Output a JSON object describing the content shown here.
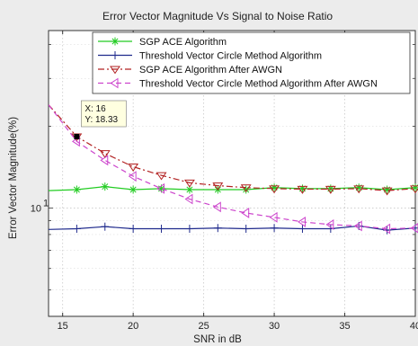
{
  "chart_data": {
    "type": "line",
    "title": "Error Vector Magnitude Vs Signal to Noise Ratio",
    "xlabel": "SNR in dB",
    "ylabel": "Error Vector Magnitude(%)",
    "xlim": [
      14,
      40
    ],
    "ylim": [
      4,
      45
    ],
    "yscale": "log",
    "grid": true,
    "legend_position": "top-right",
    "x_ticks": [
      15,
      20,
      25,
      30,
      35,
      40
    ],
    "y_ticks": [
      {
        "value": 10,
        "label": "10",
        "sup": "1"
      }
    ],
    "series": [
      {
        "name": "SGP ACE Algorithm",
        "color": "#22cc22",
        "marker": "asterisk",
        "dash": "solid",
        "x": [
          14,
          16,
          18,
          20,
          22,
          24,
          26,
          28,
          30,
          32,
          34,
          36,
          38,
          40
        ],
        "y": [
          11.6,
          11.7,
          12.0,
          11.7,
          11.8,
          11.7,
          11.7,
          11.7,
          11.9,
          11.8,
          11.8,
          11.9,
          11.7,
          11.9
        ]
      },
      {
        "name": "Threshold Vector Circle Method Algorithm",
        "color": "#1f2a8c",
        "marker": "plus",
        "dash": "solid",
        "x": [
          14,
          16,
          18,
          20,
          22,
          24,
          26,
          28,
          30,
          32,
          34,
          36,
          38,
          40
        ],
        "y": [
          8.35,
          8.4,
          8.55,
          8.4,
          8.4,
          8.4,
          8.45,
          8.4,
          8.45,
          8.4,
          8.4,
          8.6,
          8.3,
          8.45
        ]
      },
      {
        "name": "SGP ACE Algorithm After AWGN",
        "color": "#b22222",
        "marker": "triangle-down",
        "dash": "dashdot",
        "x": [
          14,
          16,
          18,
          20,
          22,
          24,
          26,
          28,
          30,
          32,
          34,
          36,
          38,
          40
        ],
        "y": [
          24.0,
          18.33,
          15.9,
          14.2,
          13.2,
          12.4,
          12.1,
          11.9,
          11.8,
          11.75,
          11.75,
          11.8,
          11.6,
          11.8
        ]
      },
      {
        "name": "Threshold Vector Circle Method Algorithm After AWGN",
        "color": "#cc44cc",
        "marker": "triangle-left",
        "dash": "dashed",
        "x": [
          14,
          16,
          18,
          20,
          22,
          24,
          26,
          28,
          30,
          32,
          34,
          36,
          38,
          40
        ],
        "y": [
          24.0,
          17.6,
          15.0,
          13.1,
          11.8,
          10.8,
          10.1,
          9.6,
          9.25,
          8.9,
          8.7,
          8.6,
          8.4,
          8.45
        ]
      }
    ],
    "datatip": {
      "x_label": "X: 16",
      "y_label": "Y: 18.33",
      "x": 16,
      "y": 18.33
    }
  }
}
